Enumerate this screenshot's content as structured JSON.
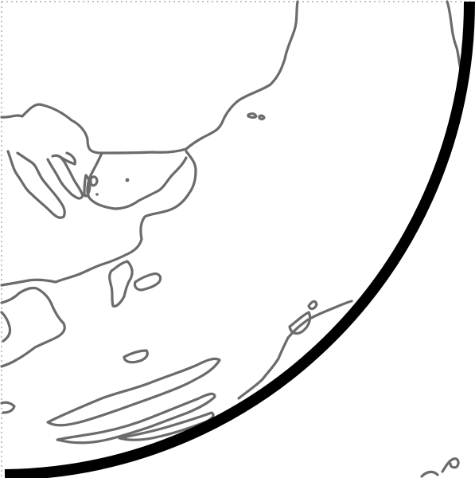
{
  "map": {
    "projection": "orthographic",
    "background_color": "#ffffff",
    "coastline_color": "#6b6b6b",
    "globe_outline_color": "#000000",
    "frame_style": "dotted"
  },
  "map_features": [
    "globe-outline",
    "coastline-mainland",
    "coastline-islands",
    "frame-border"
  ]
}
